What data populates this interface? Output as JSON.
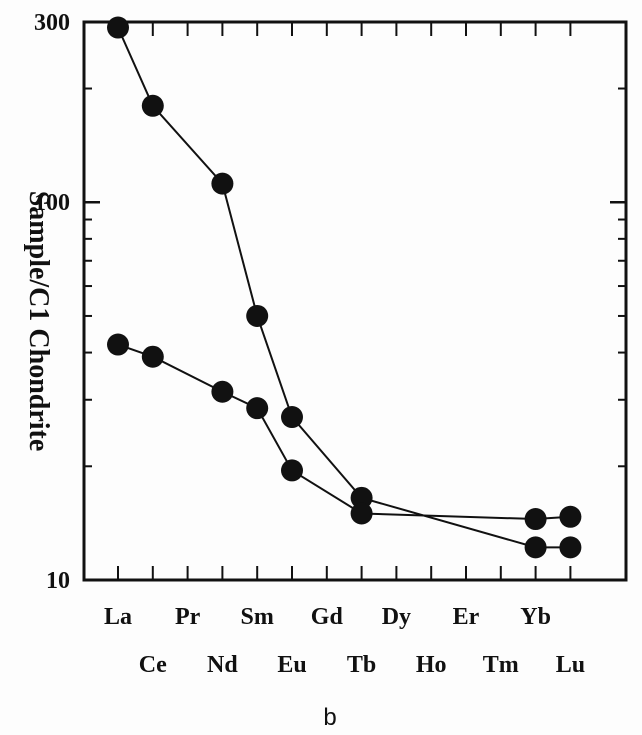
{
  "chart_data": {
    "type": "line",
    "panel_label": "b",
    "ylabel": "Sample/C1 Chondrite",
    "yscale": "log",
    "ylim": [
      10,
      300
    ],
    "y_tick_labels": [
      "300",
      "100",
      "10"
    ],
    "y_tick_values": [
      300,
      100,
      10
    ],
    "categories": [
      "La",
      "Ce",
      "Pr",
      "Nd",
      "Sm",
      "Eu",
      "Gd",
      "Tb",
      "Dy",
      "Ho",
      "Er",
      "Tm",
      "Yb",
      "Lu"
    ],
    "series": [
      {
        "points": [
          {
            "x": "La",
            "y": 290
          },
          {
            "x": "Ce",
            "y": 180
          },
          {
            "x": "Nd",
            "y": 112
          },
          {
            "x": "Sm",
            "y": 50
          },
          {
            "x": "Eu",
            "y": 27
          },
          {
            "x": "Tb",
            "y": 16.5
          },
          {
            "x": "Yb",
            "y": 12.2
          },
          {
            "x": "Lu",
            "y": 12.2
          }
        ]
      },
      {
        "points": [
          {
            "x": "La",
            "y": 42
          },
          {
            "x": "Ce",
            "y": 39
          },
          {
            "x": "Nd",
            "y": 31.5
          },
          {
            "x": "Sm",
            "y": 28.5
          },
          {
            "x": "Eu",
            "y": 19.5
          },
          {
            "x": "Tb",
            "y": 15
          },
          {
            "x": "Yb",
            "y": 14.5
          },
          {
            "x": "Lu",
            "y": 14.7
          }
        ]
      }
    ]
  }
}
